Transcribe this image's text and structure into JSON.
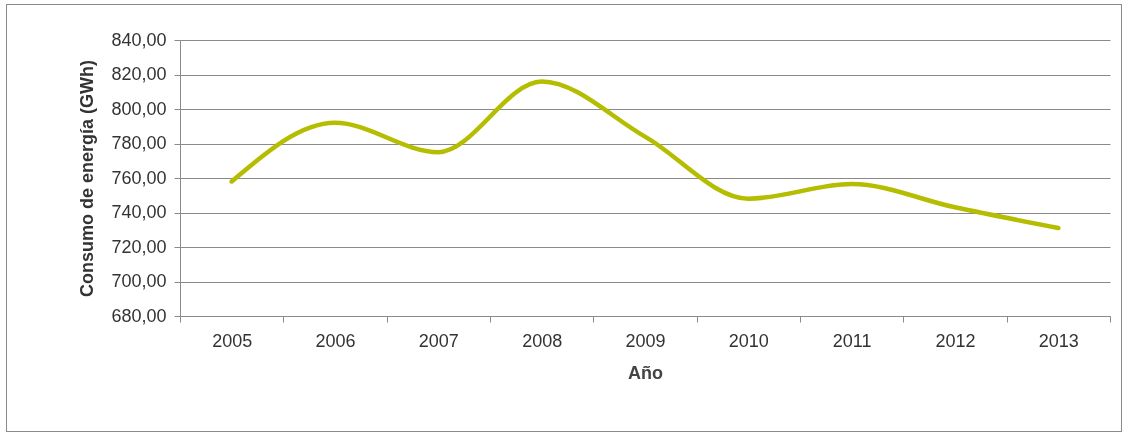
{
  "chart_data": {
    "type": "line",
    "xlabel": "Año",
    "ylabel": "Consumo de energía (GWh)",
    "categories": [
      "2005",
      "2006",
      "2007",
      "2008",
      "2009",
      "2010",
      "2011",
      "2012",
      "2013"
    ],
    "series": [
      {
        "color": "#b5bd00",
        "values": [
          758,
          792,
          775,
          816,
          784,
          748,
          756.5,
          743,
          731
        ]
      }
    ],
    "ylim": [
      680,
      840
    ],
    "yticks": [
      {
        "value": 680,
        "label": "680,00"
      },
      {
        "value": 700,
        "label": "700,00"
      },
      {
        "value": 720,
        "label": "720,00"
      },
      {
        "value": 740,
        "label": "740,00"
      },
      {
        "value": 760,
        "label": "760,00"
      },
      {
        "value": 780,
        "label": "780,00"
      },
      {
        "value": 800,
        "label": "800,00"
      },
      {
        "value": 820,
        "label": "820,00"
      },
      {
        "value": 840,
        "label": "840,00"
      }
    ],
    "grid": "y",
    "marker": "none",
    "line_style": "solid"
  }
}
